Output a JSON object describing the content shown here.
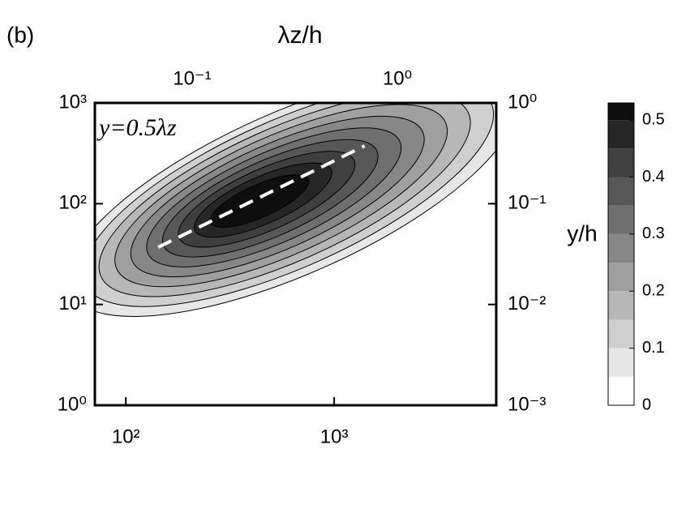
{
  "chart_data": {
    "type": "contour",
    "panel_label": "(b)",
    "x2label": "λz/h",
    "y2label": "y/h",
    "annotation": "y=0.5λz",
    "xscale": "log",
    "yscale": "log",
    "xlim": [
      71,
      6000
    ],
    "xticks": [
      {
        "value": 100,
        "label": "10²"
      },
      {
        "value": 1000,
        "label": "10³"
      }
    ],
    "ylim": [
      1,
      1000
    ],
    "yticks": [
      {
        "value": 1,
        "label": "10⁰"
      },
      {
        "value": 10,
        "label": "10¹"
      },
      {
        "value": 100,
        "label": "10²"
      },
      {
        "value": 1000,
        "label": "10³"
      }
    ],
    "x2lim": [
      0.0336,
      3.03
    ],
    "x2ticks": [
      {
        "value": 0.1,
        "label": "10⁻¹"
      },
      {
        "value": 1,
        "label": "10⁰"
      }
    ],
    "y2lim": [
      0.001,
      1
    ],
    "y2ticks": [
      {
        "value": 0.001,
        "label": "10⁻³"
      },
      {
        "value": 0.01,
        "label": "10⁻²"
      },
      {
        "value": 0.1,
        "label": "10⁻¹"
      },
      {
        "value": 1,
        "label": "10⁰"
      }
    ],
    "levels": [
      0.05,
      0.1,
      0.15,
      0.2,
      0.25,
      0.3,
      0.35,
      0.4,
      0.45,
      0.5
    ],
    "colormap": "gray_r",
    "clim": [
      0,
      0.53
    ],
    "cticks": [
      0,
      0.1,
      0.2,
      0.3,
      0.4,
      0.5
    ],
    "line": {
      "x": [
        143,
        1400
      ],
      "y": [
        37,
        375
      ],
      "color": "#ffffff",
      "style": "dashed"
    }
  }
}
